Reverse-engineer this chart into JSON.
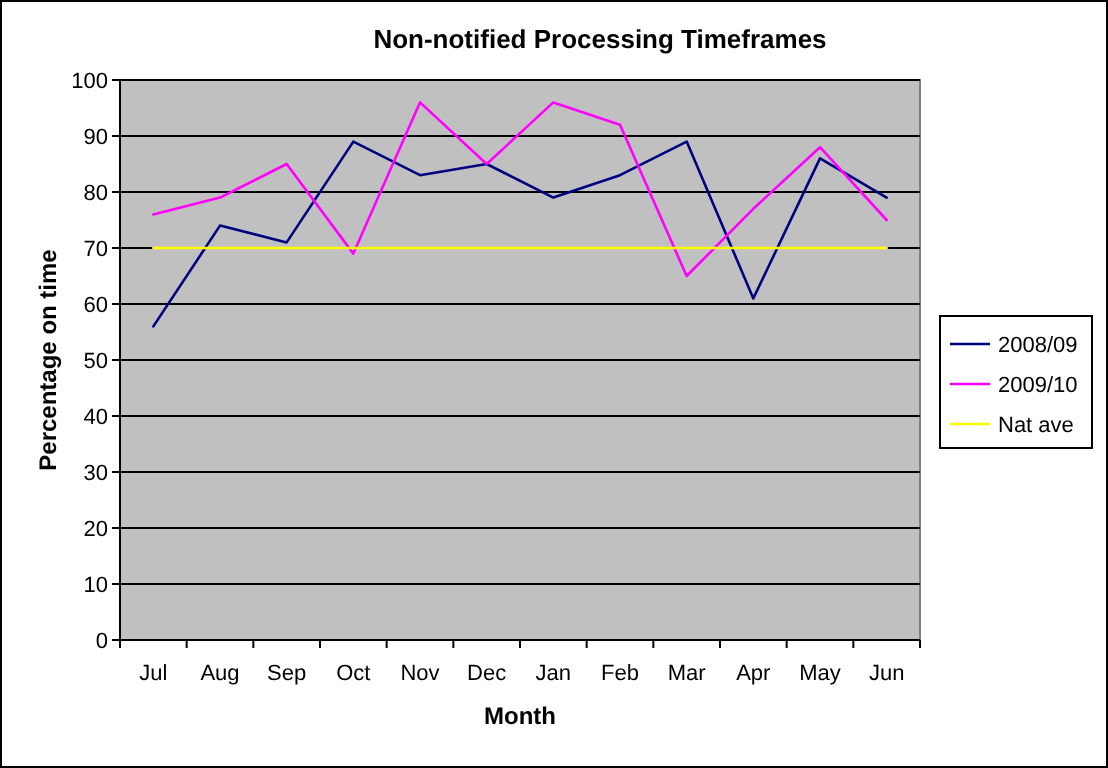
{
  "chart_data": {
    "type": "line",
    "title": "Non-notified Processing Timeframes",
    "xlabel": "Month",
    "ylabel": "Percentage on time",
    "categories": [
      "Jul",
      "Aug",
      "Sep",
      "Oct",
      "Nov",
      "Dec",
      "Jan",
      "Feb",
      "Mar",
      "Apr",
      "May",
      "Jun"
    ],
    "series": [
      {
        "name": "2008/09",
        "color": "#000080",
        "values": [
          56,
          74,
          71,
          89,
          83,
          85,
          79,
          83,
          89,
          61,
          86,
          79
        ]
      },
      {
        "name": "2009/10",
        "color": "#ff00ff",
        "values": [
          76,
          79,
          85,
          69,
          96,
          85,
          96,
          92,
          65,
          77,
          88,
          75
        ]
      },
      {
        "name": "Nat ave",
        "color": "#ffff00",
        "values": [
          70,
          70,
          70,
          70,
          70,
          70,
          70,
          70,
          70,
          70,
          70,
          70
        ]
      }
    ],
    "ylim": [
      0,
      100
    ],
    "yticks": [
      0,
      10,
      20,
      30,
      40,
      50,
      60,
      70,
      80,
      90,
      100
    ],
    "grid": "y",
    "legend": "right",
    "marker": "none",
    "line_style": "solid"
  }
}
